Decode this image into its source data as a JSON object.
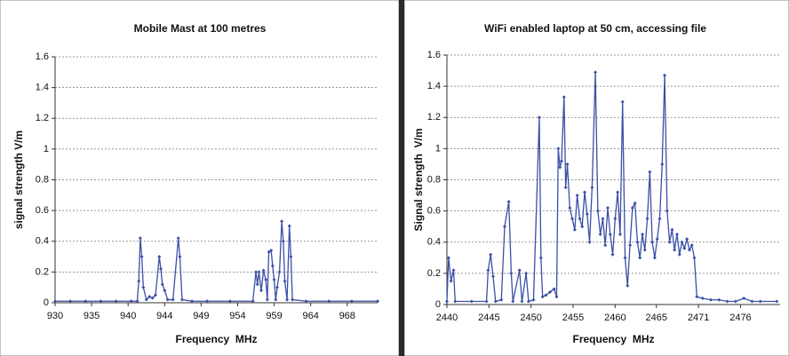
{
  "chart_data": [
    {
      "type": "line",
      "title": "Mobile Mast at 100 metres",
      "xlabel": "Frequency  MHz",
      "ylabel": "signal strength V/m",
      "xlim": [
        930,
        972.4
      ],
      "ylim": [
        0,
        1.6
      ],
      "xticks": [
        930,
        {
          "value": 934.8,
          "label": "935"
        },
        {
          "value": 939.6,
          "label": "940"
        },
        {
          "value": 944.4,
          "label": "944"
        },
        {
          "value": 949.2,
          "label": "949"
        },
        954,
        {
          "value": 958.8,
          "label": "959"
        },
        {
          "value": 963.6,
          "label": "964"
        },
        {
          "value": 968.4,
          "label": "968"
        }
      ],
      "yticks": [
        0,
        0.2,
        0.4,
        0.6,
        0.8,
        1,
        1.2,
        1.4,
        1.6
      ],
      "grid": true,
      "series": [
        {
          "color": "#3a4fa6",
          "x": [
            930,
            932,
            934,
            936,
            938,
            940,
            940.8,
            941,
            941.2,
            941.4,
            941.6,
            942,
            942.4,
            942.8,
            943.2,
            943.7,
            943.9,
            944.1,
            944.4,
            944.8,
            945.5,
            946.2,
            946.4,
            946.7,
            948,
            950,
            953,
            956,
            956.4,
            956.6,
            956.8,
            957.1,
            957.4,
            957.7,
            957.9,
            958.1,
            958.4,
            958.6,
            958.8,
            959,
            959.2,
            959.5,
            959.8,
            960,
            960.2,
            960.5,
            960.8,
            961,
            961.2,
            963,
            966,
            969,
            972.4
          ],
          "values": [
            0.01,
            0.01,
            0.01,
            0.01,
            0.01,
            0.01,
            0.01,
            0.14,
            0.42,
            0.3,
            0.1,
            0.02,
            0.04,
            0.03,
            0.05,
            0.3,
            0.22,
            0.12,
            0.08,
            0.02,
            0.02,
            0.42,
            0.3,
            0.02,
            0.01,
            0.01,
            0.01,
            0.01,
            0.2,
            0.12,
            0.2,
            0.08,
            0.21,
            0.15,
            0.02,
            0.33,
            0.34,
            0.24,
            0.15,
            0.02,
            0.1,
            0.2,
            0.53,
            0.4,
            0.14,
            0.02,
            0.5,
            0.3,
            0.02,
            0.01,
            0.01,
            0.01,
            0.01
          ]
        }
      ]
    },
    {
      "type": "line",
      "title": "WiFi enabled laptop at 50 cm, accessing file",
      "xlabel": "Frequency  MHz",
      "ylabel": "Signal strength  V/m",
      "xlim": [
        2440,
        2480.4
      ],
      "ylim": [
        0,
        1.6
      ],
      "xticks": [
        2440,
        {
          "value": 2445.1,
          "label": "2445"
        },
        {
          "value": 2450.2,
          "label": "2450"
        },
        {
          "value": 2455.3,
          "label": "2455"
        },
        {
          "value": 2460.4,
          "label": "2460"
        },
        {
          "value": 2465.4,
          "label": "2465"
        },
        {
          "value": 2470.5,
          "label": "2471"
        },
        {
          "value": 2475.6,
          "label": "2476"
        }
      ],
      "yticks": [
        0,
        0.2,
        0.4,
        0.6,
        0.8,
        1,
        1.2,
        1.4,
        1.6
      ],
      "grid": true,
      "series": [
        {
          "color": "#3a4fa6",
          "x": [
            2440,
            2440.2,
            2440.5,
            2440.8,
            2441,
            2443,
            2444.8,
            2445,
            2445.3,
            2445.6,
            2445.9,
            2446.6,
            2447,
            2447.5,
            2447.8,
            2448,
            2448.8,
            2449.1,
            2449.6,
            2449.9,
            2450.5,
            2451.2,
            2451.4,
            2451.6,
            2452,
            2452.5,
            2453,
            2453.3,
            2453.5,
            2453.7,
            2453.9,
            2454.2,
            2454.4,
            2454.6,
            2454.9,
            2455.2,
            2455.5,
            2455.8,
            2456.1,
            2456.4,
            2456.7,
            2457,
            2457.3,
            2457.6,
            2458,
            2458.3,
            2458.6,
            2458.9,
            2459.2,
            2459.5,
            2459.8,
            2460.1,
            2460.4,
            2460.7,
            2461,
            2461.3,
            2461.6,
            2461.9,
            2462.2,
            2462.5,
            2462.8,
            2463.1,
            2463.4,
            2463.7,
            2464,
            2464.3,
            2464.6,
            2464.9,
            2465.2,
            2465.5,
            2465.8,
            2466.1,
            2466.4,
            2466.7,
            2467,
            2467.3,
            2467.6,
            2467.9,
            2468.2,
            2468.5,
            2468.8,
            2469.1,
            2469.4,
            2469.7,
            2470,
            2470.3,
            2471,
            2472,
            2473,
            2474,
            2475,
            2476,
            2477,
            2478,
            2480
          ],
          "values": [
            0.02,
            0.3,
            0.15,
            0.22,
            0.02,
            0.02,
            0.02,
            0.22,
            0.32,
            0.18,
            0.02,
            0.03,
            0.5,
            0.66,
            0.2,
            0.02,
            0.22,
            0.02,
            0.2,
            0.02,
            0.03,
            1.2,
            0.3,
            0.05,
            0.06,
            0.08,
            0.1,
            0.05,
            1.0,
            0.88,
            0.92,
            1.33,
            0.75,
            0.9,
            0.62,
            0.55,
            0.48,
            0.7,
            0.55,
            0.5,
            0.72,
            0.58,
            0.4,
            0.75,
            1.49,
            0.6,
            0.45,
            0.55,
            0.38,
            0.62,
            0.45,
            0.32,
            0.55,
            0.72,
            0.45,
            1.3,
            0.3,
            0.12,
            0.38,
            0.62,
            0.65,
            0.4,
            0.3,
            0.45,
            0.35,
            0.55,
            0.85,
            0.4,
            0.3,
            0.42,
            0.55,
            0.9,
            1.47,
            0.6,
            0.4,
            0.48,
            0.35,
            0.45,
            0.32,
            0.4,
            0.36,
            0.42,
            0.35,
            0.38,
            0.3,
            0.05,
            0.04,
            0.03,
            0.03,
            0.02,
            0.02,
            0.04,
            0.02,
            0.02,
            0.02
          ]
        }
      ]
    }
  ]
}
